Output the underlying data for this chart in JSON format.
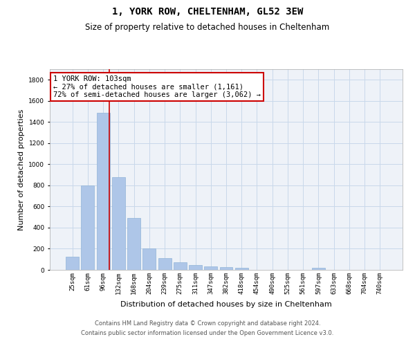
{
  "title": "1, YORK ROW, CHELTENHAM, GL52 3EW",
  "subtitle": "Size of property relative to detached houses in Cheltenham",
  "xlabel": "Distribution of detached houses by size in Cheltenham",
  "ylabel": "Number of detached properties",
  "footer_line1": "Contains HM Land Registry data © Crown copyright and database right 2024.",
  "footer_line2": "Contains public sector information licensed under the Open Government Licence v3.0.",
  "categories": [
    "25sqm",
    "61sqm",
    "96sqm",
    "132sqm",
    "168sqm",
    "204sqm",
    "239sqm",
    "275sqm",
    "311sqm",
    "347sqm",
    "382sqm",
    "418sqm",
    "454sqm",
    "490sqm",
    "525sqm",
    "561sqm",
    "597sqm",
    "633sqm",
    "668sqm",
    "704sqm",
    "740sqm"
  ],
  "values": [
    125,
    800,
    1490,
    880,
    490,
    205,
    110,
    70,
    48,
    35,
    28,
    22,
    0,
    0,
    0,
    0,
    18,
    0,
    0,
    0,
    0
  ],
  "bar_color": "#aec6e8",
  "bar_edgecolor": "#90b4d8",
  "grid_color": "#c8d8ea",
  "bg_color": "#eef2f8",
  "ylim": [
    0,
    1900
  ],
  "yticks": [
    0,
    200,
    400,
    600,
    800,
    1000,
    1200,
    1400,
    1600,
    1800
  ],
  "vline_x_index": 2,
  "vline_color": "#cc0000",
  "annotation_text": "1 YORK ROW: 103sqm\n← 27% of detached houses are smaller (1,161)\n72% of semi-detached houses are larger (3,062) →",
  "annotation_box_color": "#cc0000",
  "annotation_fontsize": 7.5,
  "title_fontsize": 10,
  "subtitle_fontsize": 8.5,
  "xlabel_fontsize": 8,
  "ylabel_fontsize": 8,
  "tick_fontsize": 6.5,
  "footer_fontsize": 6
}
